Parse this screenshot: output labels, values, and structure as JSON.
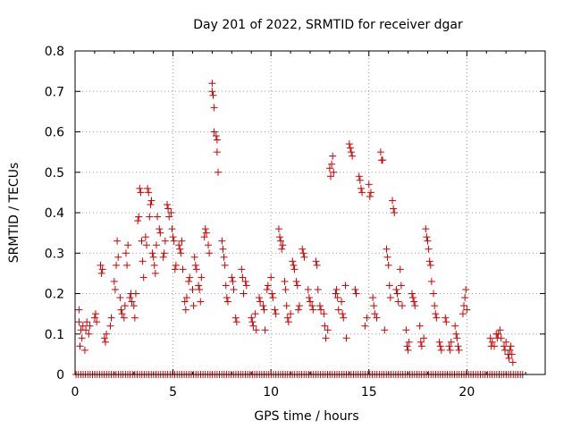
{
  "chart_data": {
    "type": "scatter",
    "title": "Day 201 of 2022, SRMTID for receiver dgar",
    "xlabel": "GPS time / hours",
    "ylabel": "SRMTID / TECUs",
    "xlim": [
      0,
      24
    ],
    "ylim": [
      0,
      0.8
    ],
    "xticks": [
      0,
      5,
      10,
      15,
      20
    ],
    "yticks": [
      0,
      0.1,
      0.2,
      0.3,
      0.4,
      0.5,
      0.6,
      0.7,
      0.8
    ],
    "xtick_labels": [
      "0",
      "5",
      "10",
      "15",
      "20"
    ],
    "ytick_labels": [
      "0",
      "0.1",
      "0.2",
      "0.3",
      "0.4",
      "0.5",
      "0.6",
      "0.7",
      "0.8"
    ],
    "grid": true,
    "marker": "+",
    "color": "#cc0000",
    "zero_baseline": {
      "y": 0,
      "x_start": 0.05,
      "x_end": 22.9,
      "step": 0.12
    },
    "series": [
      {
        "name": "SRMTID",
        "points": [
          [
            0.2,
            0.16
          ],
          [
            0.2,
            0.13
          ],
          [
            0.25,
            0.07
          ],
          [
            0.3,
            0.11
          ],
          [
            0.35,
            0.09
          ],
          [
            0.4,
            0.12
          ],
          [
            0.5,
            0.06
          ],
          [
            0.55,
            0.11
          ],
          [
            0.6,
            0.13
          ],
          [
            0.7,
            0.1
          ],
          [
            0.75,
            0.12
          ],
          [
            1.0,
            0.14
          ],
          [
            1.05,
            0.15
          ],
          [
            1.1,
            0.13
          ],
          [
            1.3,
            0.27
          ],
          [
            1.35,
            0.25
          ],
          [
            1.4,
            0.26
          ],
          [
            1.5,
            0.09
          ],
          [
            1.55,
            0.08
          ],
          [
            1.6,
            0.1
          ],
          [
            1.8,
            0.12
          ],
          [
            1.85,
            0.14
          ],
          [
            2.0,
            0.23
          ],
          [
            2.05,
            0.21
          ],
          [
            2.1,
            0.27
          ],
          [
            2.15,
            0.33
          ],
          [
            2.2,
            0.29
          ],
          [
            2.3,
            0.19
          ],
          [
            2.35,
            0.16
          ],
          [
            2.4,
            0.15
          ],
          [
            2.5,
            0.14
          ],
          [
            2.55,
            0.17
          ],
          [
            2.6,
            0.3
          ],
          [
            2.65,
            0.27
          ],
          [
            2.7,
            0.32
          ],
          [
            2.8,
            0.19
          ],
          [
            2.85,
            0.2
          ],
          [
            2.9,
            0.18
          ],
          [
            3.0,
            0.17
          ],
          [
            3.05,
            0.14
          ],
          [
            3.1,
            0.2
          ],
          [
            3.2,
            0.38
          ],
          [
            3.25,
            0.39
          ],
          [
            3.3,
            0.46
          ],
          [
            3.35,
            0.45
          ],
          [
            3.4,
            0.33
          ],
          [
            3.45,
            0.28
          ],
          [
            3.5,
            0.24
          ],
          [
            3.6,
            0.34
          ],
          [
            3.65,
            0.32
          ],
          [
            3.7,
            0.46
          ],
          [
            3.75,
            0.45
          ],
          [
            3.8,
            0.39
          ],
          [
            3.85,
            0.42
          ],
          [
            3.9,
            0.43
          ],
          [
            3.95,
            0.3
          ],
          [
            4.0,
            0.29
          ],
          [
            4.05,
            0.27
          ],
          [
            4.1,
            0.25
          ],
          [
            4.15,
            0.32
          ],
          [
            4.2,
            0.39
          ],
          [
            4.3,
            0.36
          ],
          [
            4.35,
            0.35
          ],
          [
            4.5,
            0.29
          ],
          [
            4.55,
            0.3
          ],
          [
            4.6,
            0.33
          ],
          [
            4.7,
            0.42
          ],
          [
            4.75,
            0.41
          ],
          [
            4.8,
            0.39
          ],
          [
            4.9,
            0.4
          ],
          [
            4.95,
            0.36
          ],
          [
            5.0,
            0.34
          ],
          [
            5.05,
            0.33
          ],
          [
            5.1,
            0.26
          ],
          [
            5.15,
            0.27
          ],
          [
            5.3,
            0.32
          ],
          [
            5.35,
            0.31
          ],
          [
            5.4,
            0.3
          ],
          [
            5.45,
            0.33
          ],
          [
            5.5,
            0.26
          ],
          [
            5.6,
            0.18
          ],
          [
            5.65,
            0.16
          ],
          [
            5.7,
            0.19
          ],
          [
            5.8,
            0.23
          ],
          [
            5.85,
            0.24
          ],
          [
            6.0,
            0.21
          ],
          [
            6.05,
            0.17
          ],
          [
            6.1,
            0.29
          ],
          [
            6.15,
            0.27
          ],
          [
            6.2,
            0.26
          ],
          [
            6.3,
            0.22
          ],
          [
            6.35,
            0.21
          ],
          [
            6.4,
            0.18
          ],
          [
            6.45,
            0.24
          ],
          [
            6.6,
            0.34
          ],
          [
            6.65,
            0.36
          ],
          [
            6.7,
            0.35
          ],
          [
            6.8,
            0.32
          ],
          [
            6.85,
            0.3
          ],
          [
            7.0,
            0.72
          ],
          [
            7.0,
            0.7
          ],
          [
            7.05,
            0.69
          ],
          [
            7.1,
            0.66
          ],
          [
            7.1,
            0.6
          ],
          [
            7.2,
            0.59
          ],
          [
            7.25,
            0.58
          ],
          [
            7.25,
            0.55
          ],
          [
            7.3,
            0.5
          ],
          [
            7.5,
            0.33
          ],
          [
            7.55,
            0.31
          ],
          [
            7.6,
            0.29
          ],
          [
            7.65,
            0.27
          ],
          [
            7.7,
            0.22
          ],
          [
            7.75,
            0.19
          ],
          [
            7.8,
            0.18
          ],
          [
            8.0,
            0.24
          ],
          [
            8.05,
            0.23
          ],
          [
            8.1,
            0.21
          ],
          [
            8.2,
            0.14
          ],
          [
            8.25,
            0.13
          ],
          [
            8.5,
            0.26
          ],
          [
            8.55,
            0.24
          ],
          [
            8.6,
            0.2
          ],
          [
            8.7,
            0.23
          ],
          [
            8.75,
            0.22
          ],
          [
            9.0,
            0.14
          ],
          [
            9.05,
            0.13
          ],
          [
            9.1,
            0.12
          ],
          [
            9.2,
            0.15
          ],
          [
            9.25,
            0.11
          ],
          [
            9.4,
            0.19
          ],
          [
            9.45,
            0.18
          ],
          [
            9.6,
            0.17
          ],
          [
            9.65,
            0.16
          ],
          [
            9.7,
            0.11
          ],
          [
            9.8,
            0.21
          ],
          [
            9.85,
            0.22
          ],
          [
            10.0,
            0.24
          ],
          [
            10.05,
            0.2
          ],
          [
            10.1,
            0.19
          ],
          [
            10.2,
            0.16
          ],
          [
            10.25,
            0.15
          ],
          [
            10.4,
            0.36
          ],
          [
            10.45,
            0.34
          ],
          [
            10.5,
            0.33
          ],
          [
            10.55,
            0.31
          ],
          [
            10.6,
            0.32
          ],
          [
            10.7,
            0.23
          ],
          [
            10.75,
            0.21
          ],
          [
            10.8,
            0.17
          ],
          [
            10.85,
            0.14
          ],
          [
            10.9,
            0.13
          ],
          [
            11.0,
            0.15
          ],
          [
            11.1,
            0.28
          ],
          [
            11.15,
            0.27
          ],
          [
            11.2,
            0.26
          ],
          [
            11.3,
            0.23
          ],
          [
            11.35,
            0.22
          ],
          [
            11.4,
            0.16
          ],
          [
            11.45,
            0.17
          ],
          [
            11.6,
            0.31
          ],
          [
            11.65,
            0.3
          ],
          [
            11.7,
            0.29
          ],
          [
            11.9,
            0.21
          ],
          [
            11.95,
            0.19
          ],
          [
            12.0,
            0.18
          ],
          [
            12.1,
            0.17
          ],
          [
            12.15,
            0.16
          ],
          [
            12.3,
            0.28
          ],
          [
            12.35,
            0.27
          ],
          [
            12.4,
            0.21
          ],
          [
            12.5,
            0.17
          ],
          [
            12.55,
            0.16
          ],
          [
            12.7,
            0.15
          ],
          [
            12.75,
            0.12
          ],
          [
            12.8,
            0.09
          ],
          [
            12.9,
            0.11
          ],
          [
            13.0,
            0.51
          ],
          [
            13.05,
            0.49
          ],
          [
            13.1,
            0.52
          ],
          [
            13.15,
            0.54
          ],
          [
            13.2,
            0.5
          ],
          [
            13.3,
            0.2
          ],
          [
            13.35,
            0.21
          ],
          [
            13.4,
            0.19
          ],
          [
            13.45,
            0.16
          ],
          [
            13.6,
            0.18
          ],
          [
            13.65,
            0.15
          ],
          [
            13.7,
            0.14
          ],
          [
            13.8,
            0.22
          ],
          [
            13.85,
            0.09
          ],
          [
            14.0,
            0.57
          ],
          [
            14.05,
            0.56
          ],
          [
            14.1,
            0.55
          ],
          [
            14.15,
            0.54
          ],
          [
            14.3,
            0.21
          ],
          [
            14.35,
            0.2
          ],
          [
            14.5,
            0.49
          ],
          [
            14.55,
            0.48
          ],
          [
            14.6,
            0.46
          ],
          [
            14.65,
            0.45
          ],
          [
            14.8,
            0.12
          ],
          [
            14.9,
            0.14
          ],
          [
            15.0,
            0.47
          ],
          [
            15.05,
            0.44
          ],
          [
            15.1,
            0.45
          ],
          [
            15.2,
            0.19
          ],
          [
            15.25,
            0.17
          ],
          [
            15.3,
            0.15
          ],
          [
            15.4,
            0.14
          ],
          [
            15.6,
            0.55
          ],
          [
            15.65,
            0.53
          ],
          [
            15.7,
            0.53
          ],
          [
            15.8,
            0.11
          ],
          [
            15.9,
            0.31
          ],
          [
            15.95,
            0.29
          ],
          [
            16.0,
            0.27
          ],
          [
            16.05,
            0.22
          ],
          [
            16.1,
            0.19
          ],
          [
            16.2,
            0.43
          ],
          [
            16.25,
            0.41
          ],
          [
            16.3,
            0.4
          ],
          [
            16.4,
            0.21
          ],
          [
            16.45,
            0.2
          ],
          [
            16.5,
            0.18
          ],
          [
            16.6,
            0.26
          ],
          [
            16.65,
            0.22
          ],
          [
            16.7,
            0.17
          ],
          [
            16.9,
            0.11
          ],
          [
            16.95,
            0.07
          ],
          [
            17.0,
            0.06
          ],
          [
            17.05,
            0.08
          ],
          [
            17.2,
            0.2
          ],
          [
            17.25,
            0.19
          ],
          [
            17.3,
            0.18
          ],
          [
            17.35,
            0.17
          ],
          [
            17.6,
            0.12
          ],
          [
            17.65,
            0.08
          ],
          [
            17.7,
            0.07
          ],
          [
            17.8,
            0.09
          ],
          [
            17.9,
            0.36
          ],
          [
            17.95,
            0.34
          ],
          [
            18.0,
            0.33
          ],
          [
            18.05,
            0.31
          ],
          [
            18.1,
            0.28
          ],
          [
            18.15,
            0.27
          ],
          [
            18.2,
            0.23
          ],
          [
            18.3,
            0.2
          ],
          [
            18.35,
            0.17
          ],
          [
            18.4,
            0.15
          ],
          [
            18.45,
            0.14
          ],
          [
            18.6,
            0.08
          ],
          [
            18.65,
            0.07
          ],
          [
            18.7,
            0.06
          ],
          [
            18.9,
            0.14
          ],
          [
            18.95,
            0.13
          ],
          [
            19.1,
            0.07
          ],
          [
            19.15,
            0.06
          ],
          [
            19.2,
            0.08
          ],
          [
            19.4,
            0.12
          ],
          [
            19.45,
            0.1
          ],
          [
            19.5,
            0.09
          ],
          [
            19.55,
            0.07
          ],
          [
            19.6,
            0.06
          ],
          [
            19.8,
            0.15
          ],
          [
            19.85,
            0.17
          ],
          [
            19.9,
            0.19
          ],
          [
            19.95,
            0.21
          ],
          [
            20.0,
            0.16
          ],
          [
            21.2,
            0.09
          ],
          [
            21.25,
            0.07
          ],
          [
            21.3,
            0.08
          ],
          [
            21.4,
            0.07
          ],
          [
            21.5,
            0.1
          ],
          [
            21.55,
            0.09
          ],
          [
            21.6,
            0.1
          ],
          [
            21.7,
            0.11
          ],
          [
            21.75,
            0.09
          ],
          [
            21.9,
            0.07
          ],
          [
            21.95,
            0.06
          ],
          [
            22.0,
            0.08
          ],
          [
            22.1,
            0.05
          ],
          [
            22.15,
            0.04
          ],
          [
            22.2,
            0.06
          ],
          [
            22.25,
            0.07
          ],
          [
            22.3,
            0.05
          ],
          [
            22.35,
            0.03
          ]
        ]
      }
    ]
  }
}
